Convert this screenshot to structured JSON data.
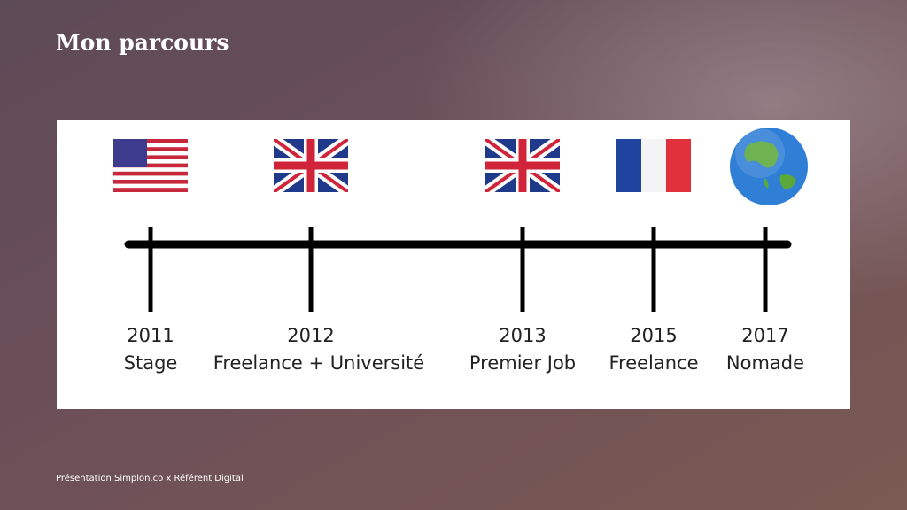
{
  "title": "Mon parcours",
  "timeline": [
    {
      "year": "2011",
      "label": "Stage"
    },
    {
      "year": "2012",
      "label": "Freelance + Université"
    },
    {
      "year": "2013",
      "label": "Premier Job"
    },
    {
      "year": "2015",
      "label": "Freelance"
    },
    {
      "year": "2017",
      "label": "Nomade"
    }
  ],
  "footer": "Présentation Simplon.co x Référent Digital"
}
